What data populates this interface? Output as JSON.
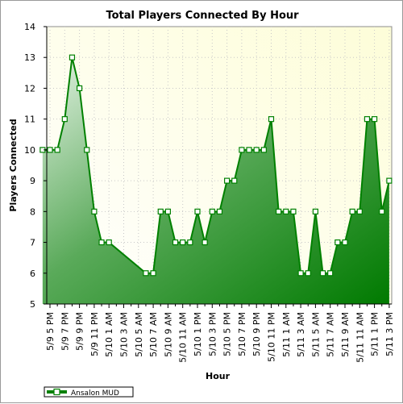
{
  "chart_data": {
    "type": "area",
    "title": "Total Players Connected By Hour",
    "xlabel": "Hour",
    "ylabel": "Players Connected",
    "ylim": [
      5,
      14
    ],
    "yticks": [
      5,
      6,
      7,
      8,
      9,
      10,
      11,
      12,
      13,
      14
    ],
    "grid": true,
    "legend_position": "bottom-left",
    "x_tick_labels": [
      "5/9 5 PM",
      "5/9 7 PM",
      "5/9 9 PM",
      "5/9 11 PM",
      "5/10 1 AM",
      "5/10 3 AM",
      "5/10 5 AM",
      "5/10 7 AM",
      "5/10 9 AM",
      "5/10 11 AM",
      "5/10 1 PM",
      "5/10 3 PM",
      "5/10 5 PM",
      "5/10 7 PM",
      "5/10 9 PM",
      "5/10 11 PM",
      "5/11 1 AM",
      "5/11 3 AM",
      "5/11 5 AM",
      "5/11 7 AM",
      "5/11 9 AM",
      "5/11 11 AM",
      "5/11 1 PM",
      "5/11 3 PM"
    ],
    "series": [
      {
        "name": "Ansalon MUD",
        "color": "#008000",
        "points": [
          {
            "x": "5/9 4 PM",
            "y": 10
          },
          {
            "x": "5/9 5 PM",
            "y": 10
          },
          {
            "x": "5/9 6 PM",
            "y": 10
          },
          {
            "x": "5/9 7 PM",
            "y": 11
          },
          {
            "x": "5/9 8 PM",
            "y": 13
          },
          {
            "x": "5/9 9 PM",
            "y": 12
          },
          {
            "x": "5/9 10 PM",
            "y": 10
          },
          {
            "x": "5/9 11 PM",
            "y": 8
          },
          {
            "x": "5/10 12 AM",
            "y": 7
          },
          {
            "x": "5/10 1 AM",
            "y": 7
          },
          {
            "x": "5/10 6 AM",
            "y": 6
          },
          {
            "x": "5/10 7 AM",
            "y": 6
          },
          {
            "x": "5/10 8 AM",
            "y": 8
          },
          {
            "x": "5/10 9 AM",
            "y": 8
          },
          {
            "x": "5/10 10 AM",
            "y": 7
          },
          {
            "x": "5/10 11 AM",
            "y": 7
          },
          {
            "x": "5/10 12 PM",
            "y": 7
          },
          {
            "x": "5/10 1 PM",
            "y": 8
          },
          {
            "x": "5/10 2 PM",
            "y": 7
          },
          {
            "x": "5/10 3 PM",
            "y": 8
          },
          {
            "x": "5/10 4 PM",
            "y": 8
          },
          {
            "x": "5/10 5 PM",
            "y": 9
          },
          {
            "x": "5/10 6 PM",
            "y": 9
          },
          {
            "x": "5/10 7 PM",
            "y": 10
          },
          {
            "x": "5/10 8 PM",
            "y": 10
          },
          {
            "x": "5/10 9 PM",
            "y": 10
          },
          {
            "x": "5/10 10 PM",
            "y": 10
          },
          {
            "x": "5/10 11 PM",
            "y": 11
          },
          {
            "x": "5/11 12 AM",
            "y": 8
          },
          {
            "x": "5/11 1 AM",
            "y": 8
          },
          {
            "x": "5/11 2 AM",
            "y": 8
          },
          {
            "x": "5/11 3 AM",
            "y": 6
          },
          {
            "x": "5/11 4 AM",
            "y": 6
          },
          {
            "x": "5/11 5 AM",
            "y": 8
          },
          {
            "x": "5/11 6 AM",
            "y": 6
          },
          {
            "x": "5/11 7 AM",
            "y": 6
          },
          {
            "x": "5/11 8 AM",
            "y": 7
          },
          {
            "x": "5/11 9 AM",
            "y": 7
          },
          {
            "x": "5/11 10 AM",
            "y": 8
          },
          {
            "x": "5/11 11 AM",
            "y": 8
          },
          {
            "x": "5/11 12 PM",
            "y": 11
          },
          {
            "x": "5/11 1 PM",
            "y": 11
          },
          {
            "x": "5/11 2 PM",
            "y": 8
          },
          {
            "x": "5/11 3 PM",
            "y": 9
          }
        ]
      }
    ],
    "colors": {
      "plot_background_top": "#fdfde0",
      "grid": "#c8c8c8",
      "line": "#008000",
      "fill_light": "#e0f0e0",
      "fill_dark": "#008000"
    }
  }
}
